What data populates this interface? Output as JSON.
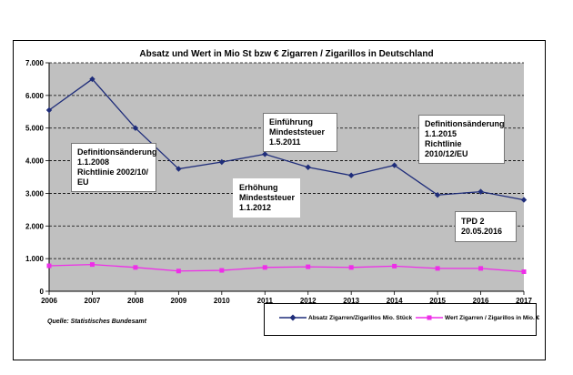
{
  "chart_data": {
    "type": "line",
    "title": "Absatz  und Wert in Mio St bzw € Zigarren / Zigarillos in Deutschland",
    "x": [
      2006,
      2007,
      2008,
      2009,
      2010,
      2011,
      2012,
      2013,
      2014,
      2015,
      2016,
      2017
    ],
    "ylim": [
      0,
      7000
    ],
    "yticks": [
      "0",
      "1.000",
      "2.000",
      "3.000",
      "4.000",
      "5.000",
      "6.000",
      "7.000"
    ],
    "grid": "horizontal dashed",
    "legend_position": "bottom-right",
    "series": [
      {
        "name": "Absatz Zigarren/Zigarillos Mio. Stück",
        "color": "#1f2d7a",
        "marker": "diamond",
        "values": [
          5550,
          6500,
          5000,
          3750,
          3960,
          4200,
          3800,
          3550,
          3860,
          2950,
          3050,
          2800
        ]
      },
      {
        "name": "Wert Zigarren / Zigarillos in Mio. €",
        "color": "#ee2ee8",
        "marker": "square",
        "values": [
          780,
          820,
          730,
          620,
          640,
          730,
          750,
          730,
          770,
          700,
          700,
          600
        ]
      }
    ],
    "annotations": [
      {
        "lines": [
          "Definitionsänderung",
          "1.1.2008",
          "Richtlinie  2002/10/",
          "EU"
        ]
      },
      {
        "lines": [
          "Einführung",
          "Mindeststeuer",
          "1.5.2011"
        ]
      },
      {
        "lines": [
          "Erhöhung",
          "Mindeststeuer",
          "1.1.2012"
        ]
      },
      {
        "lines": [
          "Definitionsänderung",
          "1.1.2015",
          "Richtlinie",
          "2010/12/EU"
        ]
      },
      {
        "lines": [
          "TPD 2",
          "20.05.2016"
        ]
      }
    ],
    "source": "Quelle: Statistisches Bundesamt"
  }
}
